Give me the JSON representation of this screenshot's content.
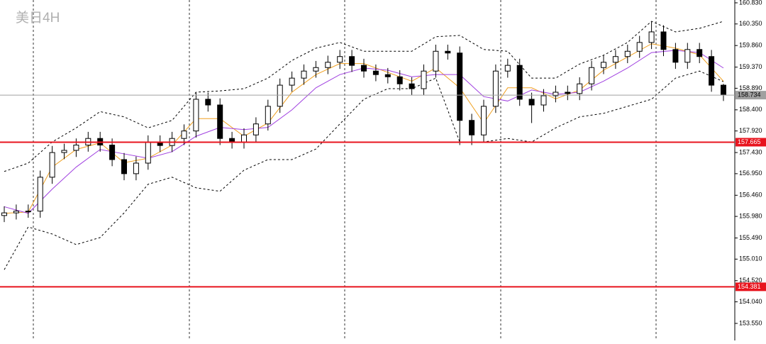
{
  "chart_data": {
    "type": "candlestick",
    "title": "美日4H",
    "open": [
      156.0,
      156.06,
      156.1,
      156.1,
      156.87,
      157.43,
      157.48,
      157.6,
      157.75,
      157.6,
      157.27,
      156.95,
      157.19,
      157.67,
      157.59,
      157.75,
      157.92,
      158.64,
      158.51,
      157.75,
      157.67,
      157.83,
      158.08,
      158.48,
      158.96,
      159.12,
      159.28,
      159.36,
      159.48,
      159.61,
      159.41,
      159.28,
      159.2,
      159.15,
      158.99,
      158.88,
      159.28,
      159.73,
      159.69,
      158.16,
      157.83,
      158.48,
      159.28,
      159.41,
      158.64,
      158.51,
      158.72,
      158.8,
      158.77,
      158.99,
      159.36,
      159.48,
      159.61,
      159.73,
      159.93,
      160.17,
      159.77,
      159.48,
      159.77,
      159.61,
      158.96
    ],
    "high": [
      156.21,
      156.25,
      156.25,
      157.02,
      157.58,
      157.63,
      157.75,
      157.9,
      157.9,
      157.75,
      157.42,
      157.34,
      157.82,
      157.82,
      157.9,
      158.07,
      158.79,
      158.79,
      158.66,
      157.9,
      157.98,
      158.23,
      158.63,
      159.11,
      159.27,
      159.43,
      159.51,
      159.63,
      159.76,
      159.76,
      159.56,
      159.43,
      159.35,
      159.3,
      159.14,
      159.43,
      159.88,
      159.88,
      159.84,
      158.31,
      158.63,
      159.43,
      159.56,
      159.56,
      158.79,
      158.87,
      158.95,
      158.95,
      159.14,
      159.51,
      159.63,
      159.76,
      159.88,
      160.08,
      160.4,
      160.32,
      159.92,
      159.92,
      159.92,
      159.76,
      158.99
    ],
    "low": [
      155.85,
      155.91,
      155.95,
      155.95,
      156.72,
      157.28,
      157.33,
      157.45,
      157.45,
      157.12,
      156.8,
      156.8,
      157.04,
      157.44,
      157.44,
      157.6,
      157.77,
      158.36,
      157.6,
      157.52,
      157.52,
      157.68,
      157.93,
      158.33,
      158.81,
      158.97,
      159.13,
      159.21,
      159.33,
      159.26,
      159.13,
      159.05,
      159.0,
      158.84,
      158.73,
      158.73,
      159.13,
      159.54,
      157.6,
      157.6,
      157.68,
      158.33,
      159.13,
      158.49,
      158.1,
      158.36,
      158.57,
      158.62,
      158.62,
      158.84,
      159.21,
      159.33,
      159.46,
      159.58,
      159.78,
      159.62,
      159.33,
      159.33,
      159.46,
      158.81,
      158.6
    ],
    "close": [
      156.06,
      156.1,
      156.1,
      156.87,
      157.43,
      157.48,
      157.6,
      157.75,
      157.6,
      157.27,
      156.95,
      157.19,
      157.67,
      157.59,
      157.75,
      157.92,
      158.64,
      158.51,
      157.75,
      157.67,
      157.83,
      158.08,
      158.48,
      158.96,
      159.12,
      159.28,
      159.36,
      159.48,
      159.61,
      159.41,
      159.28,
      159.2,
      159.15,
      158.99,
      158.88,
      159.28,
      159.73,
      159.69,
      158.16,
      157.83,
      158.48,
      159.28,
      159.41,
      158.64,
      158.51,
      158.72,
      158.8,
      158.77,
      158.99,
      159.36,
      159.48,
      159.61,
      159.73,
      159.93,
      160.17,
      159.77,
      159.48,
      159.77,
      159.61,
      158.96,
      158.75
    ],
    "indicators": {
      "x": [
        0,
        2,
        4,
        6,
        8,
        10,
        12,
        14,
        16,
        18,
        20,
        22,
        24,
        26,
        28,
        30,
        32,
        34,
        36,
        38,
        40,
        42,
        44,
        46,
        48,
        50,
        52,
        54,
        56,
        58,
        60
      ],
      "series": [
        {
          "color": "#000000",
          "style": "dashed",
          "values": [
            157.0,
            157.19,
            157.67,
            157.99,
            158.36,
            158.24,
            157.99,
            158.16,
            158.8,
            158.83,
            158.88,
            159.12,
            159.52,
            159.8,
            159.93,
            159.73,
            159.73,
            159.73,
            160.06,
            160.09,
            159.77,
            159.73,
            159.12,
            159.12,
            159.44,
            159.64,
            159.93,
            160.41,
            160.17,
            160.25,
            160.41
          ]
        },
        {
          "color": "#000000",
          "style": "dashed",
          "values": [
            154.77,
            155.74,
            155.58,
            155.34,
            155.5,
            156.06,
            156.71,
            156.87,
            156.63,
            156.55,
            157.03,
            157.27,
            157.27,
            157.51,
            158.08,
            158.64,
            158.88,
            158.88,
            159.12,
            157.67,
            157.67,
            157.75,
            157.67,
            157.99,
            158.24,
            158.32,
            158.48,
            158.64,
            159.12,
            159.28,
            159.04
          ]
        },
        {
          "color": "#f0a020",
          "style": "solid",
          "values": [
            156.05,
            156.08,
            157.1,
            157.5,
            157.65,
            157.2,
            157.3,
            157.6,
            158.2,
            158.2,
            157.8,
            158.1,
            158.8,
            159.2,
            159.45,
            159.45,
            159.25,
            159.05,
            159.35,
            158.9,
            158.1,
            158.9,
            158.9,
            158.65,
            158.85,
            159.3,
            159.6,
            159.9,
            159.8,
            159.65,
            159.05
          ]
        },
        {
          "color": "#a040e0",
          "style": "solid",
          "values": [
            156.2,
            156.05,
            156.6,
            157.1,
            157.5,
            157.4,
            157.3,
            157.45,
            157.8,
            158.0,
            157.95,
            158.0,
            158.4,
            158.9,
            159.2,
            159.35,
            159.3,
            159.15,
            159.2,
            159.2,
            158.7,
            158.6,
            158.85,
            158.75,
            158.8,
            159.05,
            159.35,
            159.7,
            159.75,
            159.7,
            159.35
          ]
        }
      ]
    },
    "levels": [
      {
        "value": 157.665,
        "color": "#e8141e"
      },
      {
        "value": 154.381,
        "color": "#e8141e"
      }
    ],
    "current_price": {
      "value": 158.734,
      "color": "#a0a0a0"
    },
    "ylim": [
      153.163,
      160.894
    ],
    "yticks": [
      {
        "value": 160.83,
        "label": "160.830"
      },
      {
        "value": 160.35,
        "label": "160.350"
      },
      {
        "value": 159.86,
        "label": "159.860"
      },
      {
        "value": 159.37,
        "label": "159.370"
      },
      {
        "value": 158.89,
        "label": "158.890"
      },
      {
        "value": 158.4,
        "label": "158.400"
      },
      {
        "value": 157.92,
        "label": "157.920"
      },
      {
        "value": 157.43,
        "label": "157.430"
      },
      {
        "value": 156.95,
        "label": "156.950"
      },
      {
        "value": 156.46,
        "label": "156.460"
      },
      {
        "value": 155.98,
        "label": "155.980"
      },
      {
        "value": 155.49,
        "label": "155.490"
      },
      {
        "value": 155.01,
        "label": "155.010"
      },
      {
        "value": 154.52,
        "label": "154.520"
      },
      {
        "value": 154.04,
        "label": "154.040"
      },
      {
        "value": 153.55,
        "label": "153.550"
      }
    ]
  }
}
